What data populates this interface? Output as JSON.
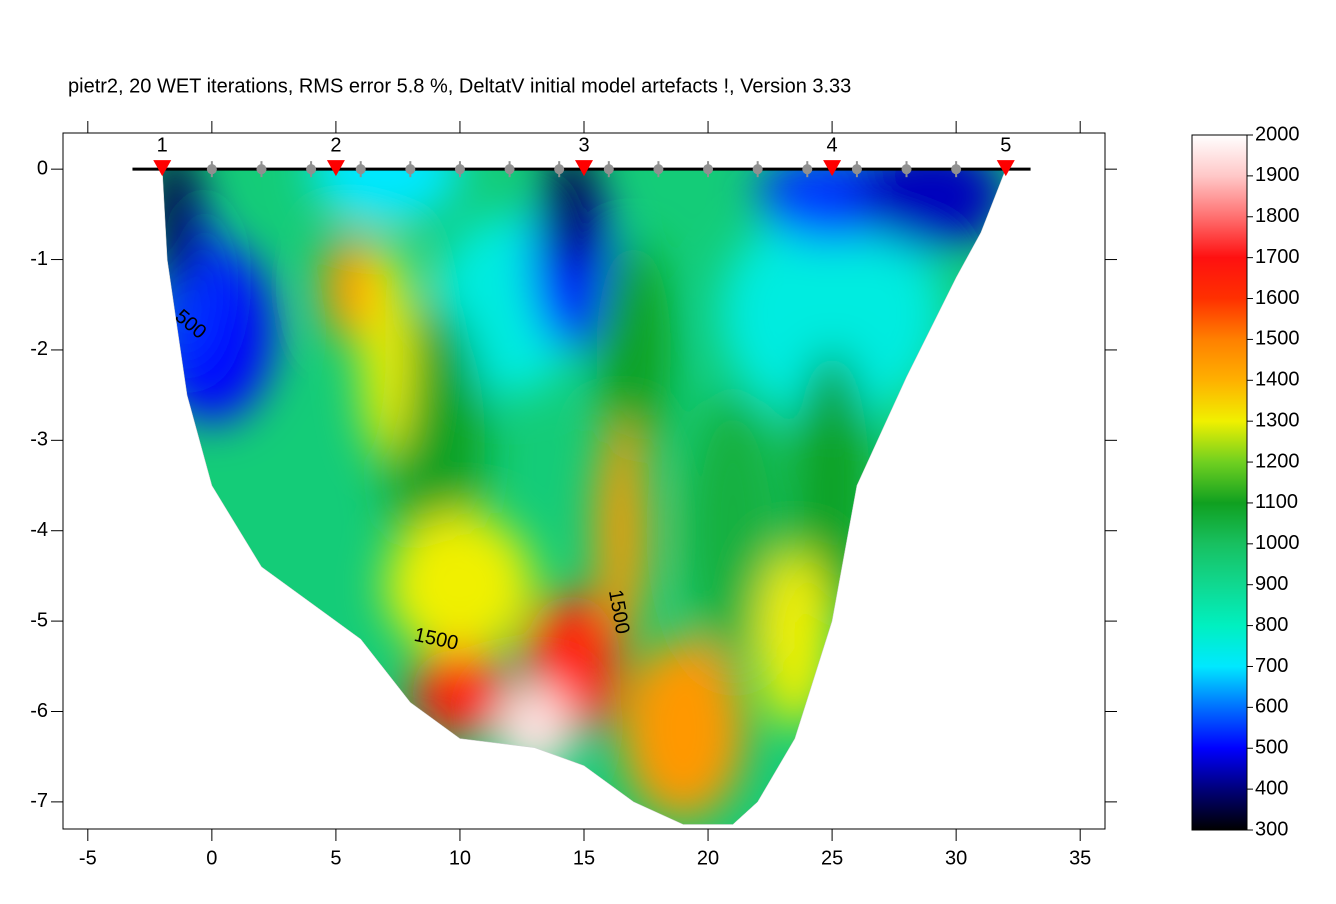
{
  "chart_data": {
    "type": "tomogram",
    "title": "pietr2, 20 WET iterations, RMS error 5.8 %, DeltatV initial model artefacts !, Version 3.33",
    "xlim": [
      -6,
      36
    ],
    "ylim": [
      -7.3,
      0.4
    ],
    "xticks": [
      -5,
      0,
      5,
      10,
      15,
      20,
      25,
      30,
      35
    ],
    "yticks": [
      -7,
      -6,
      -5,
      -4,
      -3,
      -2,
      -1,
      0
    ],
    "colorscale": [
      [
        300,
        "#000000"
      ],
      [
        400,
        "#00007a"
      ],
      [
        500,
        "#0000ff"
      ],
      [
        600,
        "#0070ff"
      ],
      [
        700,
        "#00e8ff"
      ],
      [
        800,
        "#00f0c0"
      ],
      [
        900,
        "#10d890"
      ],
      [
        1000,
        "#18c060"
      ],
      [
        1100,
        "#10a020"
      ],
      [
        1200,
        "#70d020"
      ],
      [
        1300,
        "#f0f000"
      ],
      [
        1400,
        "#ffb000"
      ],
      [
        1500,
        "#ff8000"
      ],
      [
        1600,
        "#ff3000"
      ],
      [
        1700,
        "#ff1010"
      ],
      [
        1800,
        "#ff7070"
      ],
      [
        1900,
        "#ffc8c8"
      ],
      [
        2000,
        "#ffffff"
      ]
    ],
    "colorbar": {
      "lim": [
        300,
        2000
      ],
      "ticks": [
        300,
        400,
        500,
        600,
        700,
        800,
        900,
        1000,
        1100,
        1200,
        1300,
        1400,
        1500,
        1600,
        1700,
        1800,
        1900,
        2000
      ]
    },
    "domain": {
      "x": [
        -2,
        -1.8,
        -1,
        0,
        2,
        4,
        6,
        8,
        10,
        13,
        15,
        17,
        19,
        21,
        22,
        23.5,
        25,
        26,
        28,
        30,
        31,
        32
      ],
      "y": [
        0,
        -1,
        -2.5,
        -3.5,
        -4.4,
        -4.8,
        -5.2,
        -5.9,
        -6.3,
        -6.4,
        -6.6,
        -7,
        -7.25,
        -7.25,
        -7,
        -6.3,
        -5,
        -3.5,
        -2.3,
        -1.2,
        -0.7,
        0
      ]
    },
    "field": {
      "background": 950,
      "anomalies": [
        {
          "x": 7,
          "y": 0,
          "rx": 3,
          "ry": 0.6,
          "value": 700
        },
        {
          "x": 12,
          "y": -1.5,
          "rx": 3,
          "ry": 1,
          "value": 750
        },
        {
          "x": 25,
          "y": -1.6,
          "rx": 4.5,
          "ry": 1.2,
          "value": 750
        },
        {
          "x": 0,
          "y": -1.8,
          "rx": 2.5,
          "ry": 1,
          "value": 500
        },
        {
          "x": -1,
          "y": -1.2,
          "rx": 1.2,
          "ry": 1,
          "value": 550
        },
        {
          "x": -1.5,
          "y": -0.5,
          "rx": 1,
          "ry": 0.8,
          "value": 350
        },
        {
          "x": 14.5,
          "y": -1,
          "rx": 1.6,
          "ry": 1,
          "value": 500
        },
        {
          "x": 14.5,
          "y": -0.4,
          "rx": 1,
          "ry": 0.7,
          "value": 350
        },
        {
          "x": 25,
          "y": -0.3,
          "rx": 3,
          "ry": 0.5,
          "value": 550
        },
        {
          "x": 29,
          "y": -0.3,
          "rx": 3,
          "ry": 0.6,
          "value": 450
        },
        {
          "x": 9,
          "y": -3,
          "rx": 2,
          "ry": 1.5,
          "value": 1100
        },
        {
          "x": 17,
          "y": -2,
          "rx": 1.5,
          "ry": 1.2,
          "value": 1100
        },
        {
          "x": 21,
          "y": -4,
          "rx": 2,
          "ry": 1.5,
          "value": 1050
        },
        {
          "x": 25,
          "y": -3.5,
          "rx": 1.5,
          "ry": 1.5,
          "value": 1100
        },
        {
          "x": 7,
          "y": -2,
          "rx": 1,
          "ry": 1.2,
          "value": 1300
        },
        {
          "x": 5.5,
          "y": -1.3,
          "rx": 1,
          "ry": 0.6,
          "value": 1450
        },
        {
          "x": 10,
          "y": -4.6,
          "rx": 3,
          "ry": 0.8,
          "value": 1300
        },
        {
          "x": 23.5,
          "y": -5.2,
          "rx": 1.5,
          "ry": 1,
          "value": 1300
        },
        {
          "x": 16.5,
          "y": -4,
          "rx": 1,
          "ry": 1.2,
          "value": 1450
        },
        {
          "x": 19,
          "y": -6.2,
          "rx": 2.5,
          "ry": 1,
          "value": 1450
        },
        {
          "x": 14.5,
          "y": -5.5,
          "rx": 2,
          "ry": 0.8,
          "value": 1650
        },
        {
          "x": 10,
          "y": -5.8,
          "rx": 2,
          "ry": 0.5,
          "value": 1650
        },
        {
          "x": 13,
          "y": -6.2,
          "rx": 1.5,
          "ry": 0.5,
          "value": 1950
        }
      ]
    },
    "contour_labels": [
      "500",
      "1500",
      "1500"
    ],
    "surface_x": [
      -3.2,
      33
    ],
    "shots": {
      "x": [
        -2,
        5,
        15,
        25,
        32
      ],
      "labels": [
        "1",
        "2",
        "3",
        "4",
        "5"
      ],
      "color": "#ff0000"
    },
    "receivers": {
      "x": [
        0,
        2,
        4,
        6,
        8,
        10,
        12,
        14,
        16,
        18,
        20,
        22,
        24,
        26,
        28,
        30
      ],
      "color": "#909090"
    }
  }
}
